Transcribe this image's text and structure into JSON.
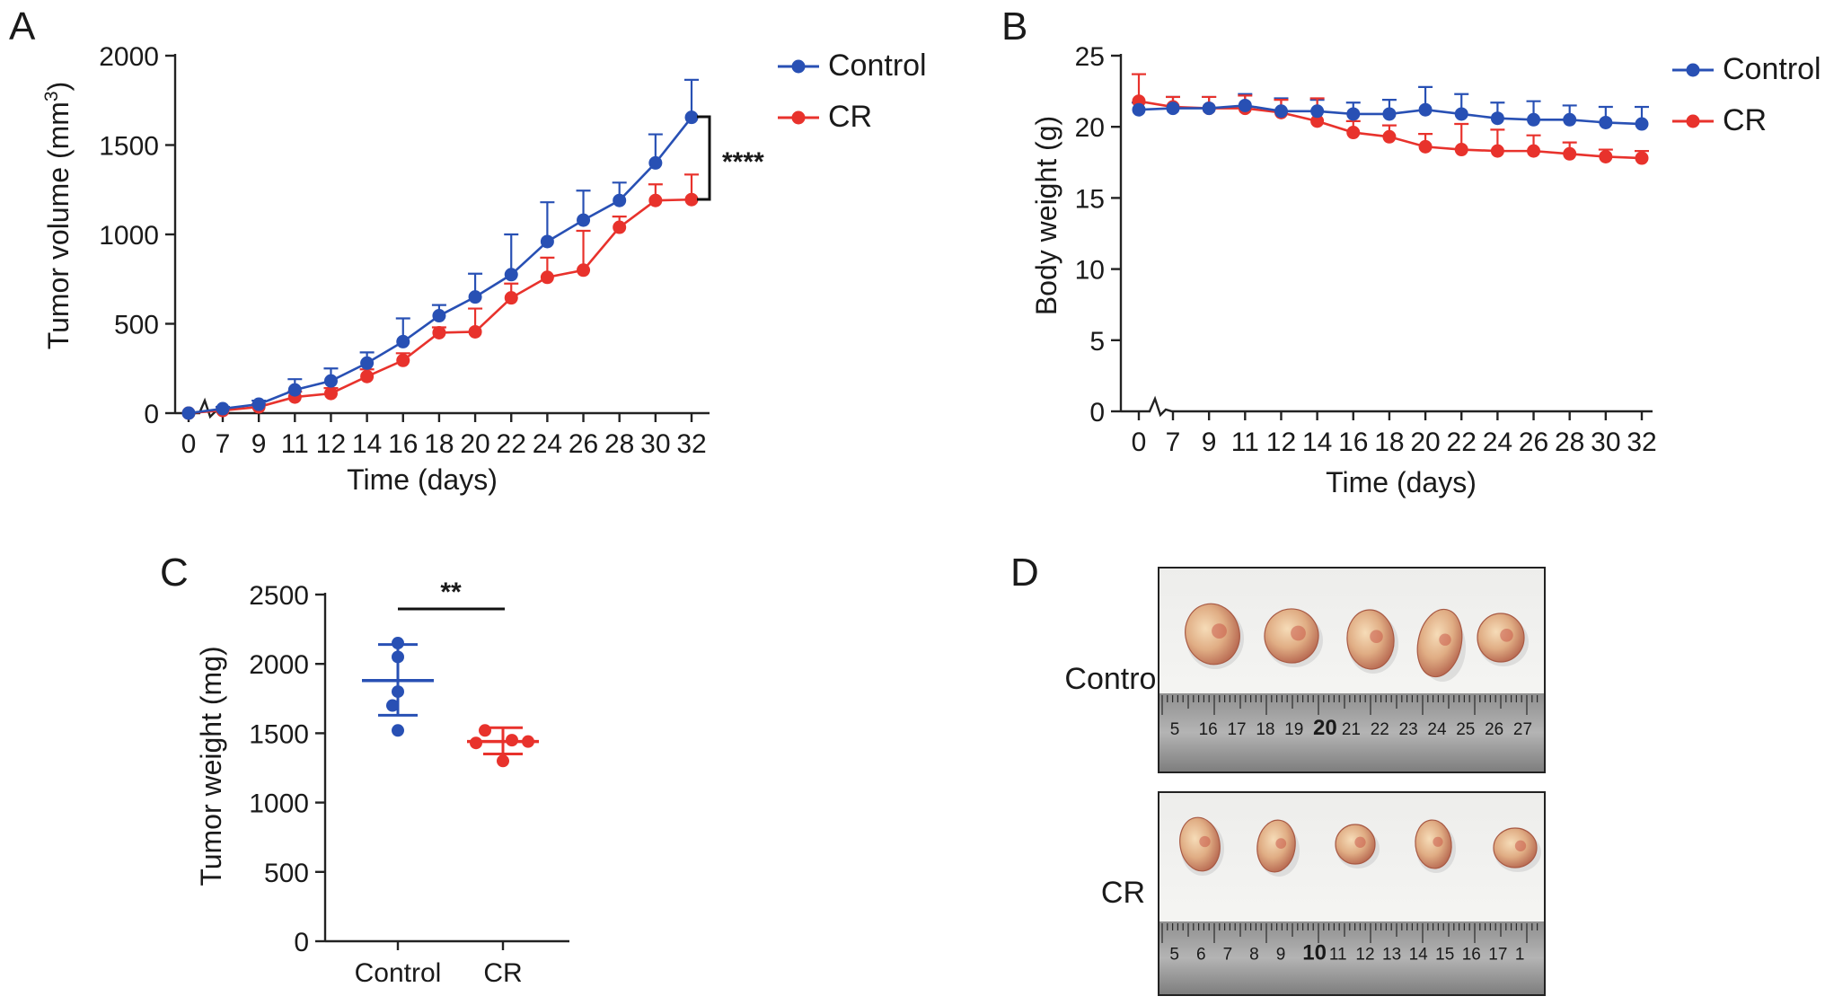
{
  "colors": {
    "control": "#2850b4",
    "cr": "#e8322c"
  },
  "panels": {
    "a": "A",
    "b": "B",
    "c": "C",
    "d": "D"
  },
  "chart_data": [
    {
      "id": "A",
      "type": "line",
      "xlabel": "Time (days)",
      "ylabel": "Tumor volume (mm",
      "ylabel_sup": "3",
      "ylabel_close": ")",
      "categories": [
        "0",
        "7",
        "9",
        "11",
        "12",
        "14",
        "16",
        "18",
        "20",
        "22",
        "24",
        "26",
        "28",
        "30",
        "32"
      ],
      "ylim": [
        0,
        2000
      ],
      "yticks": [
        0,
        500,
        1000,
        1500,
        2000
      ],
      "axis_break": "x",
      "series": [
        {
          "name": "Control",
          "color_key": "control",
          "values": [
            0,
            25,
            50,
            130,
            180,
            280,
            400,
            545,
            650,
            775,
            960,
            1080,
            1190,
            1400,
            1655
          ],
          "errors": [
            0,
            10,
            20,
            60,
            70,
            60,
            130,
            60,
            130,
            225,
            220,
            165,
            100,
            160,
            210
          ]
        },
        {
          "name": "CR",
          "color_key": "cr",
          "values": [
            0,
            15,
            35,
            90,
            110,
            205,
            295,
            450,
            455,
            645,
            760,
            800,
            1040,
            1190,
            1195
          ],
          "errors": [
            0,
            8,
            15,
            30,
            30,
            40,
            40,
            30,
            130,
            80,
            110,
            220,
            60,
            90,
            140
          ]
        }
      ],
      "significance": "****"
    },
    {
      "id": "B",
      "type": "line",
      "xlabel": "Time (days)",
      "ylabel": "Body weight (g)",
      "categories": [
        "0",
        "7",
        "9",
        "11",
        "12",
        "14",
        "16",
        "18",
        "20",
        "22",
        "24",
        "26",
        "28",
        "30",
        "32"
      ],
      "ylim": [
        0,
        25
      ],
      "yticks": [
        0,
        5,
        10,
        15,
        20,
        25
      ],
      "axis_break": "x",
      "series": [
        {
          "name": "Control",
          "color_key": "control",
          "values": [
            21.2,
            21.3,
            21.3,
            21.5,
            21.1,
            21.1,
            20.9,
            20.9,
            21.2,
            20.9,
            20.6,
            20.5,
            20.5,
            20.3,
            20.2
          ],
          "errors": [
            0.5,
            0.8,
            0.8,
            0.8,
            0.9,
            0.8,
            0.8,
            1.0,
            1.6,
            1.4,
            1.1,
            1.3,
            1.0,
            1.1,
            1.2
          ]
        },
        {
          "name": "CR",
          "color_key": "cr",
          "values": [
            21.8,
            21.4,
            21.3,
            21.3,
            21.0,
            20.4,
            19.6,
            19.3,
            18.6,
            18.4,
            18.3,
            18.3,
            18.1,
            17.9,
            17.8
          ],
          "errors": [
            1.9,
            0.7,
            0.8,
            0.9,
            0.9,
            1.6,
            0.8,
            0.8,
            0.9,
            1.8,
            1.5,
            1.1,
            0.8,
            0.5,
            0.5
          ]
        }
      ]
    },
    {
      "id": "C",
      "type": "scatter",
      "ylabel": "Tumor weight (mg)",
      "categories": [
        "Control",
        "CR"
      ],
      "ylim": [
        0,
        2500
      ],
      "yticks": [
        0,
        500,
        1000,
        1500,
        2000,
        2500
      ],
      "series": [
        {
          "name": "Control",
          "color_key": "control",
          "points": [
            2150,
            2050,
            1800,
            1700,
            1520
          ],
          "mean": 1880,
          "sd_low": 1630,
          "sd_high": 2140
        },
        {
          "name": "CR",
          "color_key": "cr",
          "points": [
            1520,
            1450,
            1440,
            1430,
            1300
          ],
          "mean": 1440,
          "sd_low": 1350,
          "sd_high": 1540
        }
      ],
      "significance": "**"
    }
  ],
  "photos": {
    "rows": [
      {
        "label": "Control",
        "ruler": [
          "5",
          "16",
          "17",
          "18",
          "19",
          "20",
          "21",
          "22",
          "23",
          "24",
          "25",
          "26",
          "27"
        ],
        "highlight": "20"
      },
      {
        "label": "CR",
        "ruler": [
          "5",
          "6",
          "7",
          "8",
          "9",
          "10",
          "11",
          "12",
          "13",
          "14",
          "15",
          "16",
          "17",
          "1"
        ],
        "highlight": "10"
      }
    ]
  }
}
